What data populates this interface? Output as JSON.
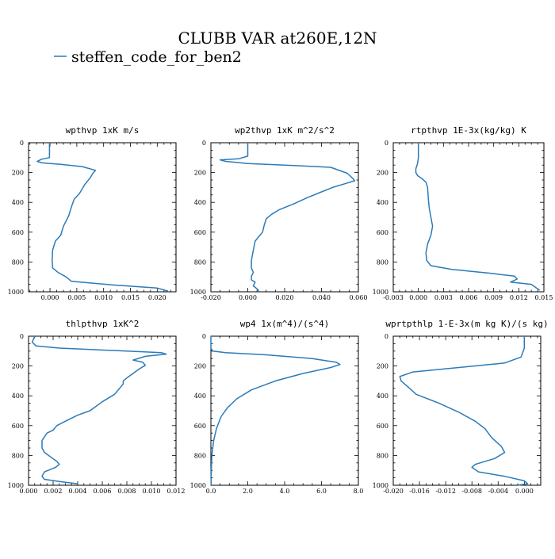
{
  "title": "CLUBB VAR at260E,12N",
  "legend": {
    "label": "steffen_code_for_ben2",
    "color": "#2b7bb9"
  },
  "chart_data": [
    {
      "type": "line",
      "title": "wpthvp  1xK m/s",
      "xlim": [
        -0.004,
        0.0235
      ],
      "xticks": [
        0.0,
        0.005,
        0.01,
        0.015,
        0.02
      ],
      "xticklabels": [
        "0.000",
        "0.005",
        "0.010",
        "0.015",
        "0.020"
      ],
      "ylim": [
        1000,
        0
      ],
      "yticks": [
        0,
        200,
        400,
        600,
        800,
        1000
      ],
      "yticklabels": [
        "0",
        "200",
        "400",
        "600",
        "800",
        "1000"
      ],
      "series": [
        {
          "name": "steffen_code_for_ben2",
          "points": [
            [
              -0.0001,
              0
            ],
            [
              -0.0001,
              60
            ],
            [
              -0.0001,
              100
            ],
            [
              -0.0015,
              110
            ],
            [
              -0.0024,
              125
            ],
            [
              -0.0015,
              135
            ],
            [
              0.002,
              145
            ],
            [
              0.006,
              160
            ],
            [
              0.0085,
              185
            ],
            [
              0.008,
              205
            ],
            [
              0.0075,
              235
            ],
            [
              0.0065,
              280
            ],
            [
              0.0055,
              340
            ],
            [
              0.0045,
              380
            ],
            [
              0.004,
              430
            ],
            [
              0.0035,
              490
            ],
            [
              0.0025,
              560
            ],
            [
              0.002,
              620
            ],
            [
              0.001,
              660
            ],
            [
              0.0005,
              720
            ],
            [
              0.0004,
              790
            ],
            [
              0.0005,
              840
            ],
            [
              0.0015,
              870
            ],
            [
              0.003,
              900
            ],
            [
              0.004,
              930
            ],
            [
              0.012,
              955
            ],
            [
              0.02,
              975
            ],
            [
              0.022,
              995
            ]
          ]
        }
      ]
    },
    {
      "type": "line",
      "title": "wp2thvp  1xK m^2/s^2",
      "xlim": [
        -0.02,
        0.06
      ],
      "xticks": [
        -0.02,
        0.0,
        0.02,
        0.04,
        0.06
      ],
      "xticklabels": [
        "-0.020",
        "0.000",
        "0.020",
        "0.040",
        "0.060"
      ],
      "ylim": [
        1000,
        0
      ],
      "yticks": [
        0,
        200,
        400,
        600,
        800,
        1000
      ],
      "yticklabels": [
        "0",
        "200",
        "400",
        "600",
        "800",
        "1000"
      ],
      "series": [
        {
          "name": "steffen_code_for_ben2",
          "points": [
            [
              0.0,
              0
            ],
            [
              0.0,
              90
            ],
            [
              -0.005,
              108
            ],
            [
              -0.015,
              115
            ],
            [
              -0.012,
              125
            ],
            [
              0.0,
              140
            ],
            [
              0.02,
              150
            ],
            [
              0.045,
              165
            ],
            [
              0.054,
              205
            ],
            [
              0.057,
              240
            ],
            [
              0.058,
              255
            ],
            [
              0.054,
              270
            ],
            [
              0.046,
              300
            ],
            [
              0.04,
              330
            ],
            [
              0.032,
              370
            ],
            [
              0.025,
              410
            ],
            [
              0.017,
              450
            ],
            [
              0.013,
              480
            ],
            [
              0.01,
              510
            ],
            [
              0.009,
              550
            ],
            [
              0.008,
              600
            ],
            [
              0.006,
              630
            ],
            [
              0.004,
              660
            ],
            [
              0.003,
              720
            ],
            [
              0.002,
              790
            ],
            [
              0.002,
              840
            ],
            [
              0.003,
              870
            ],
            [
              0.002,
              895
            ],
            [
              0.002,
              920
            ],
            [
              0.004,
              935
            ],
            [
              0.003,
              960
            ],
            [
              0.005,
              980
            ],
            [
              0.006,
              995
            ]
          ]
        }
      ]
    },
    {
      "type": "line",
      "title": "rtpthvp  1E-3x(kg/kg) K",
      "xlim": [
        -0.003,
        0.015
      ],
      "xticks": [
        -0.003,
        0.0,
        0.003,
        0.006,
        0.009,
        0.012,
        0.015
      ],
      "xticklabels": [
        "-0.003",
        "0.000",
        "0.003",
        "0.006",
        "0.009",
        "0.012",
        "0.015"
      ],
      "ylim": [
        1000,
        0
      ],
      "yticks": [
        0,
        200,
        400,
        600,
        800,
        1000
      ],
      "yticklabels": [
        "0",
        "200",
        "400",
        "600",
        "800",
        "1000"
      ],
      "series": [
        {
          "name": "steffen_code_for_ben2",
          "points": [
            [
              0.0,
              0
            ],
            [
              0.0,
              100
            ],
            [
              -0.0001,
              140
            ],
            [
              -0.0003,
              175
            ],
            [
              -0.0003,
              200
            ],
            [
              -0.0001,
              220
            ],
            [
              0.0004,
              240
            ],
            [
              0.0009,
              265
            ],
            [
              0.0011,
              300
            ],
            [
              0.0012,
              380
            ],
            [
              0.0013,
              440
            ],
            [
              0.0015,
              500
            ],
            [
              0.0017,
              560
            ],
            [
              0.0015,
              620
            ],
            [
              0.0011,
              680
            ],
            [
              0.0009,
              740
            ],
            [
              0.001,
              790
            ],
            [
              0.0015,
              825
            ],
            [
              0.004,
              850
            ],
            [
              0.0085,
              875
            ],
            [
              0.0115,
              895
            ],
            [
              0.0118,
              915
            ],
            [
              0.011,
              935
            ],
            [
              0.0135,
              950
            ],
            [
              0.014,
              970
            ],
            [
              0.0145,
              990
            ]
          ]
        }
      ]
    },
    {
      "type": "line",
      "title": "thlpthvp  1xK^2",
      "xlim": [
        0.0,
        0.012
      ],
      "xticks": [
        0.0,
        0.002,
        0.004,
        0.006,
        0.008,
        0.01,
        0.012
      ],
      "xticklabels": [
        "0.000",
        "0.002",
        "0.004",
        "0.006",
        "0.008",
        "0.010",
        "0.012"
      ],
      "ylim": [
        1000,
        0
      ],
      "yticks": [
        0,
        200,
        400,
        600,
        800,
        1000
      ],
      "yticklabels": [
        "0",
        "200",
        "400",
        "600",
        "800",
        "1000"
      ],
      "series": [
        {
          "name": "steffen_code_for_ben2",
          "points": [
            [
              0.0005,
              0
            ],
            [
              0.0003,
              40
            ],
            [
              0.0006,
              65
            ],
            [
              0.0025,
              80
            ],
            [
              0.008,
              100
            ],
            [
              0.0108,
              110
            ],
            [
              0.0112,
              120
            ],
            [
              0.0095,
              135
            ],
            [
              0.0085,
              160
            ],
            [
              0.0093,
              175
            ],
            [
              0.0095,
              195
            ],
            [
              0.009,
              220
            ],
            [
              0.0085,
              250
            ],
            [
              0.008,
              280
            ],
            [
              0.0077,
              300
            ],
            [
              0.0077,
              320
            ],
            [
              0.007,
              390
            ],
            [
              0.006,
              440
            ],
            [
              0.005,
              500
            ],
            [
              0.004,
              530
            ],
            [
              0.003,
              570
            ],
            [
              0.0023,
              600
            ],
            [
              0.002,
              630
            ],
            [
              0.0015,
              650
            ],
            [
              0.0011,
              700
            ],
            [
              0.0011,
              750
            ],
            [
              0.0013,
              780
            ],
            [
              0.0018,
              810
            ],
            [
              0.0023,
              840
            ],
            [
              0.0025,
              860
            ],
            [
              0.0022,
              880
            ],
            [
              0.0013,
              910
            ],
            [
              0.0011,
              940
            ],
            [
              0.0013,
              960
            ],
            [
              0.0025,
              975
            ],
            [
              0.004,
              990
            ]
          ]
        }
      ]
    },
    {
      "type": "line",
      "title": "wp4  1x(m^4)/(s^4)",
      "xlim": [
        0.0,
        8.0
      ],
      "xticks": [
        0.0,
        2.0,
        4.0,
        6.0,
        8.0
      ],
      "xticklabels": [
        "0.0",
        "2.0",
        "4.0",
        "6.0",
        "8.0"
      ],
      "ylim": [
        1000,
        0
      ],
      "yticks": [
        0,
        200,
        400,
        600,
        800,
        1000
      ],
      "yticklabels": [
        "0",
        "200",
        "400",
        "600",
        "800",
        "1000"
      ],
      "series": [
        {
          "name": "steffen_code_for_ben2",
          "points": [
            [
              0.0,
              0
            ],
            [
              0.0,
              80
            ],
            [
              0.1,
              100
            ],
            [
              0.8,
              110
            ],
            [
              3.0,
              125
            ],
            [
              5.5,
              150
            ],
            [
              6.8,
              175
            ],
            [
              7.0,
              190
            ],
            [
              6.5,
              210
            ],
            [
              5.0,
              250
            ],
            [
              3.5,
              300
            ],
            [
              2.2,
              360
            ],
            [
              1.4,
              420
            ],
            [
              0.9,
              480
            ],
            [
              0.55,
              540
            ],
            [
              0.3,
              620
            ],
            [
              0.15,
              700
            ],
            [
              0.05,
              800
            ],
            [
              0.02,
              900
            ],
            [
              0.01,
              1000
            ]
          ]
        }
      ]
    },
    {
      "type": "line",
      "title": "wprtpthlp  1-E-3x(m kg K)/(s kg)",
      "xlim": [
        -0.02,
        0.0025
      ],
      "xticks": [
        -0.02,
        -0.016,
        -0.012,
        -0.008,
        -0.004,
        0.0
      ],
      "xticklabels": [
        "-0.020",
        "-0.016",
        "-0.012",
        "-0.008",
        "-0.004",
        "0.000"
      ],
      "ylim": [
        1000,
        0
      ],
      "yticks": [
        0,
        200,
        400,
        600,
        800,
        1000
      ],
      "yticklabels": [
        "0",
        "200",
        "400",
        "600",
        "800",
        "1000"
      ],
      "series": [
        {
          "name": "steffen_code_for_ben2",
          "points": [
            [
              0.0,
              0
            ],
            [
              0.0,
              80
            ],
            [
              -0.0005,
              140
            ],
            [
              -0.003,
              180
            ],
            [
              -0.01,
              210
            ],
            [
              -0.017,
              240
            ],
            [
              -0.019,
              270
            ],
            [
              -0.0188,
              300
            ],
            [
              -0.0175,
              350
            ],
            [
              -0.0165,
              390
            ],
            [
              -0.013,
              450
            ],
            [
              -0.01,
              510
            ],
            [
              -0.0075,
              570
            ],
            [
              -0.006,
              620
            ],
            [
              -0.005,
              680
            ],
            [
              -0.0035,
              740
            ],
            [
              -0.003,
              780
            ],
            [
              -0.0045,
              820
            ],
            [
              -0.0075,
              860
            ],
            [
              -0.008,
              880
            ],
            [
              -0.007,
              910
            ],
            [
              -0.003,
              940
            ],
            [
              0.0,
              970
            ],
            [
              0.0005,
              990
            ],
            [
              -0.001,
              1000
            ]
          ]
        }
      ]
    }
  ]
}
